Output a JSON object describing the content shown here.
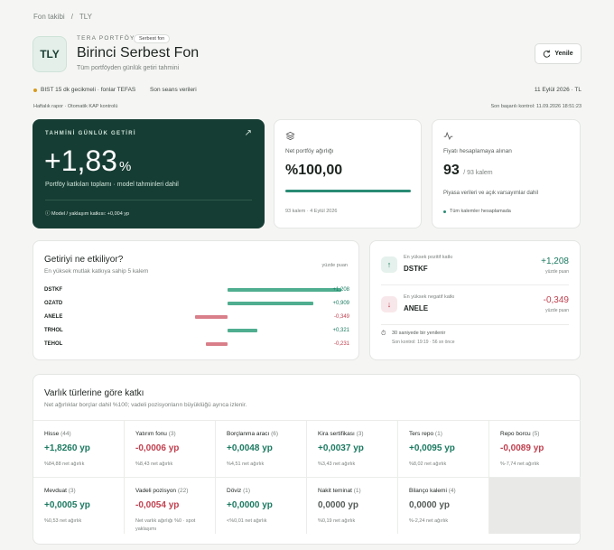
{
  "breadcrumb": {
    "root": "Fon takibi",
    "sep": "/",
    "current": "TLY"
  },
  "header": {
    "logo_text": "TLY",
    "eyebrow": "TERA PORTFÖY",
    "tag": "Serbest fon",
    "title": "Birinci Serbest Fon",
    "subtitle": "Tüm portföyden günlük getiri tahmini",
    "refresh_label": "Yenile",
    "refresh_icon": "refresh-icon"
  },
  "status": {
    "market_note": "BIST 15 dk gecikmeli · fonlar TEFAS",
    "session_note": "Son seans verileri",
    "date": "11 Eylül 2026 · TL",
    "report_note": "Haftalık rapor · Otomatik KAP kontrolü",
    "last_check": "Son başarılı kontrol: 11.09.2026 18:51:23",
    "dot_color": "#d99a1e"
  },
  "hero": {
    "label": "TAHMİNİ GÜNLÜK GETİRİ",
    "value": "+1,83",
    "unit": "%",
    "caption": "Portföy katkıları toplamı · model tahminleri dahil",
    "footnote": "Model / yaklaşım katkısı: +0,004 yp",
    "bg_color": "#163d33"
  },
  "kpis": [
    {
      "icon": "layers-icon",
      "label": "Net portföy ağırlığı",
      "value": "%100,00",
      "progress": 1.0,
      "sub": "93 kalem · 4 Eylül 2026"
    },
    {
      "icon": "activity-icon",
      "label": "Fiyatı hesaplamaya alınan",
      "value": "93",
      "value_suffix": "/ 93 kalem",
      "sub": "Piyasa verileri ve açık varsayımlar dahil",
      "sub2": "Tüm kalemler hesaplamada"
    }
  ],
  "drivers": {
    "title": "Getiriyi ne etkiliyor?",
    "subtitle": "En yüksek mutlak katkıya sahip 5 kalem",
    "unit": "yüzde puan",
    "rows": [
      {
        "ticker": "DSTKF",
        "value": "+1,208",
        "num": 1.208
      },
      {
        "ticker": "OZATD",
        "value": "+0,909",
        "num": 0.909
      },
      {
        "ticker": "ANELE",
        "value": "-0,349",
        "num": -0.349
      },
      {
        "ticker": "TRHOL",
        "value": "+0,321",
        "num": 0.321
      },
      {
        "ticker": "TEHOL",
        "value": "-0,231",
        "num": -0.231
      }
    ],
    "pos_color": "#4fae8f",
    "neg_color": "#d97f8a"
  },
  "extremes": {
    "top_label": "En yüksek pozitif katkı",
    "top_name": "DSTKF",
    "top_value": "+1,208",
    "low_label": "En yüksek negatif katkı",
    "low_name": "ANELE",
    "low_value": "-0,349",
    "unit": "yüzde puan",
    "refresh_note": "30 saniyede bir yenilenir",
    "last_check": "Son kontrol: 19:19 · 56 sn önce"
  },
  "assets": {
    "title": "Varlık türlerine göre katkı",
    "subtitle": "Net ağırlıklar borçlar dahil %100; vadeli pozisyonların büyüklüğü ayrıca izlenir.",
    "cells": [
      {
        "name": "Hisse",
        "count": "(44)",
        "value": "+1,8260 yp",
        "weight": "%84,88 net ağırlık",
        "tone": "pos"
      },
      {
        "name": "Yatırım fonu",
        "count": "(3)",
        "value": "-0,0006 yp",
        "weight": "%8,43 net ağırlık",
        "tone": "neg"
      },
      {
        "name": "Borçlanma aracı",
        "count": "(6)",
        "value": "+0,0048 yp",
        "weight": "%4,51 net ağırlık",
        "tone": "pos"
      },
      {
        "name": "Kira sertifikası",
        "count": "(3)",
        "value": "+0,0037 yp",
        "weight": "%3,43 net ağırlık",
        "tone": "pos"
      },
      {
        "name": "Ters repo",
        "count": "(1)",
        "value": "+0,0095 yp",
        "weight": "%8,02 net ağırlık",
        "tone": "pos"
      },
      {
        "name": "Repo borcu",
        "count": "(5)",
        "value": "-0,0089 yp",
        "weight": "%-7,74 net ağırlık",
        "tone": "neg"
      },
      {
        "name": "Mevduat",
        "count": "(3)",
        "value": "+0,0005 yp",
        "weight": "%0,53 net ağırlık",
        "tone": "pos"
      },
      {
        "name": "Vadeli pozisyon",
        "count": "(22)",
        "value": "-0,0054 yp",
        "weight": "Net varlık ağırlığı %0 · spot yaklaşımı",
        "tone": "neg"
      },
      {
        "name": "Döviz",
        "count": "(1)",
        "value": "+0,0000 yp",
        "weight": "<%0,01 net ağırlık",
        "tone": "pos"
      },
      {
        "name": "Nakit teminat",
        "count": "(1)",
        "value": "0,0000 yp",
        "weight": "%0,19 net ağırlık",
        "tone": "zero"
      },
      {
        "name": "Bilanço kalemi",
        "count": "(4)",
        "value": "0,0000 yp",
        "weight": "%-2,24 net ağırlık",
        "tone": "zero"
      }
    ]
  }
}
